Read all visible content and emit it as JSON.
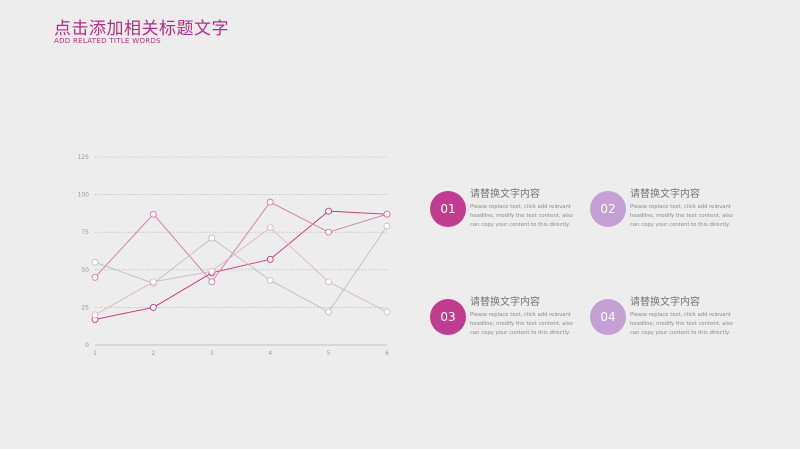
{
  "header": {
    "title": "点击添加相关标题文字",
    "subtitle": "ADD RELATED TITLE WORDS"
  },
  "colors": {
    "accent": "#b82a84",
    "circle_dark": "#c03c8f",
    "circle_light": "#c4a1d4",
    "series": [
      "#c6337d",
      "#d17aa6",
      "#bfbfbf",
      "#d9b6c8"
    ]
  },
  "chart_data": {
    "type": "line",
    "x": [
      1,
      2,
      3,
      4,
      5,
      6
    ],
    "ylim": [
      0,
      125
    ],
    "yticks": [
      0,
      25,
      50,
      75,
      100,
      125
    ],
    "xticks": [
      "1",
      "2",
      "3",
      "4",
      "5",
      "6"
    ],
    "grid": true,
    "series": [
      {
        "values": [
          17,
          25,
          48,
          57,
          89,
          87
        ]
      },
      {
        "values": [
          45,
          87,
          42,
          95,
          75,
          87
        ]
      },
      {
        "values": [
          55,
          41,
          71,
          43,
          22,
          79
        ]
      },
      {
        "values": [
          20,
          42,
          49,
          78,
          42,
          22
        ]
      }
    ]
  },
  "items": [
    {
      "number": "01",
      "title": "请替换文字内容",
      "desc": "Please replace text, click add relevant headline, modify the text content, also can copy your content to this directly."
    },
    {
      "number": "02",
      "title": "请替换文字内容",
      "desc": "Please replace text, click add relevant headline, modify the text content, also can copy your content to this directly."
    },
    {
      "number": "03",
      "title": "请替换文字内容",
      "desc": "Please replace text, click add relevant headline, modify the text content, also can copy your content to this directly."
    },
    {
      "number": "04",
      "title": "请替换文字内容",
      "desc": "Please replace text, click add relevant headline, modify the text content, also can copy your content to this directly."
    }
  ]
}
